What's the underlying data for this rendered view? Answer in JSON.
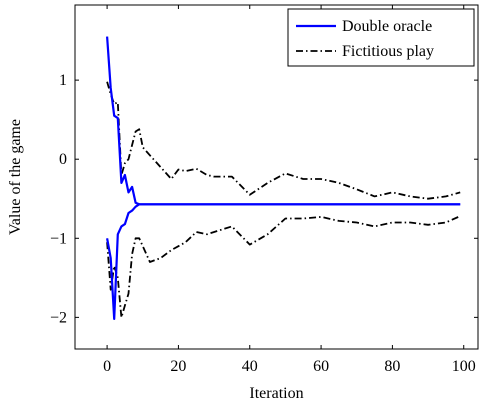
{
  "chart_data": {
    "type": "line",
    "title": "",
    "xlabel": "Iteration",
    "ylabel": "Value of the game",
    "xlim": [
      -9,
      104
    ],
    "ylim": [
      -2.4,
      1.95
    ],
    "xticks": [
      0,
      20,
      40,
      60,
      80,
      100
    ],
    "yticks": [
      -2,
      -1,
      0,
      1
    ],
    "legend": {
      "position": "top-right"
    },
    "grid": false,
    "series": [
      {
        "name": "Double oracle",
        "group": "upper",
        "color": "#0000ff",
        "style": "solid",
        "x": [
          0,
          1,
          2,
          3,
          4,
          5,
          6,
          7,
          8,
          9,
          10,
          15,
          20,
          30,
          40,
          50,
          60,
          70,
          80,
          90,
          99
        ],
        "y": [
          1.55,
          0.9,
          0.55,
          0.52,
          -0.3,
          -0.2,
          -0.42,
          -0.35,
          -0.55,
          -0.57,
          -0.57,
          -0.57,
          -0.57,
          -0.57,
          -0.57,
          -0.57,
          -0.57,
          -0.57,
          -0.57,
          -0.57,
          -0.57
        ]
      },
      {
        "name": "Double oracle",
        "group": "lower",
        "color": "#0000ff",
        "style": "solid",
        "x": [
          0,
          1,
          2,
          3,
          4,
          5,
          6,
          7,
          8,
          9,
          10,
          15,
          20,
          30,
          40,
          50,
          60,
          70,
          80,
          90,
          99
        ],
        "y": [
          -1.0,
          -1.25,
          -2.02,
          -0.95,
          -0.85,
          -0.82,
          -0.68,
          -0.65,
          -0.6,
          -0.57,
          -0.57,
          -0.57,
          -0.57,
          -0.57,
          -0.57,
          -0.57,
          -0.57,
          -0.57,
          -0.57,
          -0.57,
          -0.57
        ]
      },
      {
        "name": "Fictitious play",
        "group": "upper",
        "color": "#000000",
        "style": "dash-dot",
        "x": [
          0,
          1,
          2,
          3,
          4,
          5,
          6,
          7,
          8,
          9,
          10,
          12,
          15,
          18,
          20,
          22,
          25,
          28,
          30,
          35,
          40,
          45,
          50,
          55,
          60,
          65,
          70,
          75,
          80,
          85,
          90,
          95,
          99
        ],
        "y": [
          0.98,
          0.82,
          0.7,
          0.72,
          -0.2,
          -0.05,
          0.0,
          0.18,
          0.35,
          0.38,
          0.15,
          0.05,
          -0.1,
          -0.25,
          -0.13,
          -0.15,
          -0.12,
          -0.2,
          -0.22,
          -0.22,
          -0.45,
          -0.3,
          -0.18,
          -0.25,
          -0.25,
          -0.3,
          -0.38,
          -0.47,
          -0.42,
          -0.47,
          -0.5,
          -0.47,
          -0.42
        ]
      },
      {
        "name": "Fictitious play",
        "group": "lower",
        "color": "#000000",
        "style": "dash-dot",
        "x": [
          0,
          1,
          2,
          3,
          4,
          5,
          6,
          7,
          8,
          9,
          10,
          12,
          15,
          18,
          20,
          22,
          25,
          28,
          30,
          35,
          40,
          45,
          50,
          55,
          60,
          65,
          70,
          75,
          80,
          85,
          90,
          95,
          99
        ],
        "y": [
          -1.05,
          -1.65,
          -1.35,
          -1.5,
          -2.0,
          -1.85,
          -1.7,
          -1.2,
          -1.0,
          -1.0,
          -1.1,
          -1.3,
          -1.25,
          -1.15,
          -1.1,
          -1.05,
          -0.92,
          -0.95,
          -0.92,
          -0.85,
          -1.08,
          -0.95,
          -0.75,
          -0.75,
          -0.73,
          -0.78,
          -0.8,
          -0.85,
          -0.8,
          -0.8,
          -0.83,
          -0.8,
          -0.72
        ]
      }
    ],
    "legend_entries": [
      {
        "label": "Double oracle",
        "color": "#0000ff",
        "style": "solid"
      },
      {
        "label": "Fictitious play",
        "color": "#000000",
        "style": "dash-dot"
      }
    ]
  }
}
